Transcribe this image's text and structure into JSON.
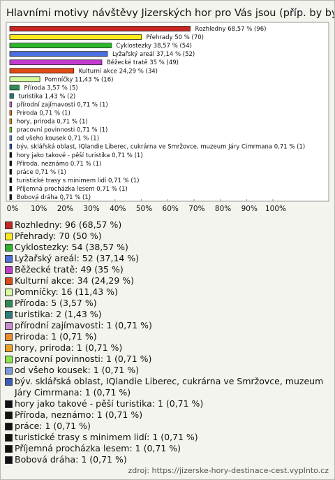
{
  "chart_data": {
    "type": "bar",
    "orientation": "horizontal",
    "title": "Hlavními motivy návštěvy Jizerských hor pro Vás jsou (příp. by byly):",
    "categories": [
      "Rozhledny",
      "Přehrady",
      "Cyklostezky",
      "Lyžařský areál",
      "Běžecké tratě",
      "Kulturní akce",
      "Pomníčky",
      "Příroda",
      "turistika",
      "přírodní zajímavosti",
      "Priroda",
      "hory, priroda",
      "pracovní povinnosti",
      "od všeho kousek",
      "býv. sklářská oblast, IQlandie Liberec, cukrárna ve Smržovce, muzeum Járy Cimrmana",
      "hory jako takové - pěší turistika",
      "Příroda, neznámo",
      "práce",
      "turistické trasy s minimem lidí",
      "Příjemná procházka lesem",
      "Bobová dráha"
    ],
    "values": [
      68.57,
      50,
      38.57,
      37.14,
      35,
      24.29,
      11.43,
      3.57,
      1.43,
      0.71,
      0.71,
      0.71,
      0.71,
      0.71,
      0.71,
      0.71,
      0.71,
      0.71,
      0.71,
      0.71,
      0.71
    ],
    "value_labels": [
      "Rozhledny 68,57 % (96)",
      "Přehrady 50 % (70)",
      "Cyklostezky 38,57 % (54)",
      "Lyžařský areál 37,14 % (52)",
      "Běžecké tratě 35 % (49)",
      "Kulturní akce 24,29 % (34)",
      "Pomníčky 11,43 % (16)",
      "Příroda 3,57 % (5)",
      "turistika 1,43 % (2)",
      "přírodní zajímavosti 0,71 % (1)",
      "Priroda 0,71 % (1)",
      "hory, priroda 0,71 % (1)",
      "pracovní povinnosti 0,71 % (1)",
      "od všeho kousek 0,71 % (1)",
      "býv. sklářská oblast, IQlandie Liberec, cukrárna ve Smržovce, muzeum Járy Cimrmana 0,71 % (1)",
      "hory jako takové - pěší turistika 0,71 % (1)",
      "Příroda, neznámo 0,71 % (1)",
      "práce 0,71 % (1)",
      "turistické trasy s minimem lidí 0,71 % (1)",
      "Příjemná procházka lesem 0,71 % (1)",
      "Bobová dráha 0,71 % (1)"
    ],
    "legend_labels": [
      "Rozhledny: 96 (68,57 %)",
      "Přehrady: 70 (50 %)",
      "Cyklostezky: 54 (38,57 %)",
      "Lyžařský areál: 52 (37,14 %)",
      "Běžecké tratě: 49 (35 %)",
      "Kulturní akce: 34 (24,29 %)",
      "Pomníčky: 16 (11,43 %)",
      "Příroda: 5 (3,57 %)",
      "turistika: 2 (1,43 %)",
      "přírodní zajímavosti: 1 (0,71 %)",
      "Priroda: 1 (0,71 %)",
      "hory, priroda: 1 (0,71 %)",
      "pracovní povinnosti: 1 (0,71 %)",
      "od všeho kousek: 1 (0,71 %)",
      "býv. sklářská oblast, IQlandie Liberec, cukrárna ve Smržovce, muzeum Járy Cimrmana: 1 (0,71 %)",
      "hory jako takové - pěší turistika: 1 (0,71 %)",
      "Příroda, neznámo: 1 (0,71 %)",
      "práce: 1 (0,71 %)",
      "turistické trasy s minimem lidí: 1 (0,71 %)",
      "Příjemná procházka lesem: 1 (0,71 %)",
      "Bobová dráha: 1 (0,71 %)"
    ],
    "colors": [
      "#c8261e",
      "#ffe81a",
      "#2db52d",
      "#4a6fe0",
      "#c43bd0",
      "#e04a14",
      "#d4ff9c",
      "#2e8b57",
      "#2b7c7c",
      "#c98ad0",
      "#f08a2a",
      "#f0a020",
      "#88e848",
      "#7a9ae0",
      "#3a5cc0",
      "#111111",
      "#111111",
      "#111111",
      "#111111",
      "#111111",
      "#111111"
    ],
    "xlim": [
      0,
      100
    ],
    "xticks": [
      {
        "value": 0,
        "label": "0%"
      },
      {
        "value": 10,
        "label": "10%"
      },
      {
        "value": 20,
        "label": "20%"
      },
      {
        "value": 30,
        "label": "30%"
      },
      {
        "value": 40,
        "label": "40%"
      },
      {
        "value": 50,
        "label": "50%"
      },
      {
        "value": 60,
        "label": "60%"
      },
      {
        "value": 70,
        "label": "70%"
      },
      {
        "value": 80,
        "label": "80%"
      },
      {
        "value": 90,
        "label": "90%"
      },
      {
        "value": 100,
        "label": "100%"
      }
    ],
    "source": "zdroj: https://jizerske-hory-destinace-cest.vyplnto.cz"
  }
}
